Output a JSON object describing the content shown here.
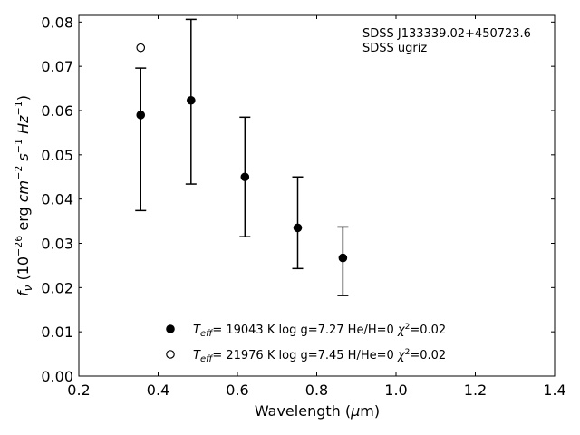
{
  "chart_data": {
    "type": "scatter",
    "title": "",
    "xlabel": "Wavelength",
    "xlabel_unit": "μm",
    "ylabel_quantity": "f",
    "ylabel_subscript": "ν",
    "ylabel_units": "(10^-26 erg cm^-2 s^-1 Hz^-1)",
    "xlim": [
      0.2,
      1.4
    ],
    "ylim": [
      0.0,
      0.0815
    ],
    "xticks": [
      "0.2",
      "0.4",
      "0.6",
      "0.8",
      "1.0",
      "1.2",
      "1.4"
    ],
    "yticks": [
      "0.00",
      "0.01",
      "0.02",
      "0.03",
      "0.04",
      "0.05",
      "0.06",
      "0.07",
      "0.08"
    ],
    "grid": false,
    "legend_position": "bottom-center",
    "annotations": [
      "SDSS J133339.02+450723.6",
      "SDSS ugriz"
    ],
    "series": [
      {
        "name": "T_eff= 19043 K  log g=7.27  He/H=0  χ²=0.02",
        "marker": "filled-circle",
        "points": [
          {
            "x": 0.356,
            "y": 0.059,
            "ylow": 0.0374,
            "yhigh": 0.0696
          },
          {
            "x": 0.483,
            "y": 0.0623,
            "ylow": 0.0434,
            "yhigh": 0.0806
          },
          {
            "x": 0.619,
            "y": 0.045,
            "ylow": 0.0315,
            "yhigh": 0.0585
          },
          {
            "x": 0.752,
            "y": 0.0335,
            "ylow": 0.0243,
            "yhigh": 0.045
          },
          {
            "x": 0.866,
            "y": 0.0267,
            "ylow": 0.0182,
            "yhigh": 0.0337
          }
        ]
      },
      {
        "name": "T_eff= 21976 K  log g=7.45  H/He=0  χ²=0.02",
        "marker": "open-circle",
        "points": [
          {
            "x": 0.356,
            "y": 0.0742
          }
        ]
      }
    ],
    "colors": {
      "marker": "#000000",
      "axis": "#000000"
    }
  }
}
